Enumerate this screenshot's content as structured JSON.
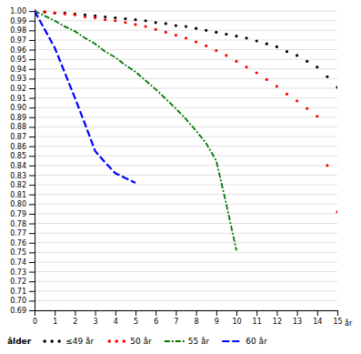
{
  "chart_data": {
    "type": "line",
    "xlabel": "år",
    "legend_title": "ålder",
    "xlim": [
      0,
      15
    ],
    "ylim": [
      0.69,
      1.002
    ],
    "xticks": [
      0,
      1,
      2,
      3,
      4,
      5,
      6,
      7,
      8,
      9,
      10,
      11,
      12,
      13,
      14,
      15
    ],
    "yticks": [
      0.69,
      {
        "value": 0.7,
        "label": "0.70"
      },
      0.71,
      0.72,
      0.73,
      0.74,
      0.75,
      0.76,
      0.77,
      0.78,
      0.79,
      {
        "value": 0.8,
        "label": "0.80"
      },
      0.81,
      0.82,
      0.83,
      0.84,
      0.85,
      0.86,
      0.87,
      0.88,
      0.89,
      {
        "value": 0.9,
        "label": "0.90"
      },
      0.91,
      0.92,
      0.93,
      0.94,
      0.95,
      0.96,
      0.97,
      0.98,
      0.99,
      {
        "value": 1.0,
        "label": "1.00"
      }
    ],
    "grid": true,
    "legend": "bottom",
    "series": [
      {
        "name": "≤49 år",
        "color": "#000000",
        "marker": "dot",
        "line_style": "none",
        "x": [
          0,
          0.5,
          1,
          1.5,
          2,
          2.5,
          3,
          3.5,
          4,
          4.5,
          5,
          5.5,
          6,
          6.5,
          7,
          7.5,
          8,
          8.5,
          9,
          9.5,
          10,
          10.5,
          11,
          11.5,
          12,
          12.5,
          13,
          13.5,
          14,
          14.5,
          15
        ],
        "values": [
          1.0,
          0.999,
          0.998,
          0.998,
          0.997,
          0.996,
          0.995,
          0.994,
          0.993,
          0.992,
          0.991,
          0.99,
          0.988,
          0.987,
          0.985,
          0.984,
          0.982,
          0.98,
          0.978,
          0.976,
          0.974,
          0.972,
          0.969,
          0.966,
          0.963,
          0.958,
          0.954,
          0.948,
          0.942,
          0.932,
          0.921
        ]
      },
      {
        "name": "50 år",
        "color": "#ff0000",
        "marker": "dot",
        "line_style": "none",
        "x": [
          0,
          0.5,
          1,
          1.5,
          2,
          2.5,
          3,
          3.5,
          4,
          4.5,
          5,
          5.5,
          6,
          6.5,
          7,
          7.5,
          8,
          8.5,
          9,
          9.5,
          10,
          10.5,
          11,
          11.5,
          12,
          12.5,
          13,
          13.5,
          14,
          14.5,
          15
        ],
        "values": [
          1.0,
          0.999,
          0.998,
          0.997,
          0.996,
          0.994,
          0.993,
          0.991,
          0.99,
          0.988,
          0.986,
          0.984,
          0.981,
          0.978,
          0.975,
          0.972,
          0.968,
          0.964,
          0.959,
          0.954,
          0.948,
          0.942,
          0.936,
          0.929,
          0.922,
          0.914,
          0.907,
          0.899,
          0.891,
          0.84,
          0.792
        ]
      },
      {
        "name": "55 år",
        "color": "#007700",
        "line_style": "dashdot",
        "x": [
          0,
          0.5,
          1,
          1.5,
          2,
          2.5,
          3,
          3.5,
          4,
          4.5,
          5,
          5.5,
          6,
          6.5,
          7,
          7.5,
          8,
          8.5,
          9,
          9.5,
          10
        ],
        "values": [
          1.0,
          0.995,
          0.99,
          0.984,
          0.979,
          0.972,
          0.966,
          0.958,
          0.952,
          0.944,
          0.937,
          0.928,
          0.919,
          0.909,
          0.899,
          0.888,
          0.876,
          0.863,
          0.845,
          0.8,
          0.752
        ]
      },
      {
        "name": "60 år",
        "color": "#0000ff",
        "line_style": "dashed",
        "x": [
          0,
          0.5,
          1,
          1.5,
          2,
          2.5,
          3,
          3.5,
          4,
          4.5,
          5
        ],
        "values": [
          1.0,
          0.981,
          0.962,
          0.936,
          0.91,
          0.883,
          0.855,
          0.843,
          0.832,
          0.827,
          0.822
        ]
      }
    ]
  }
}
